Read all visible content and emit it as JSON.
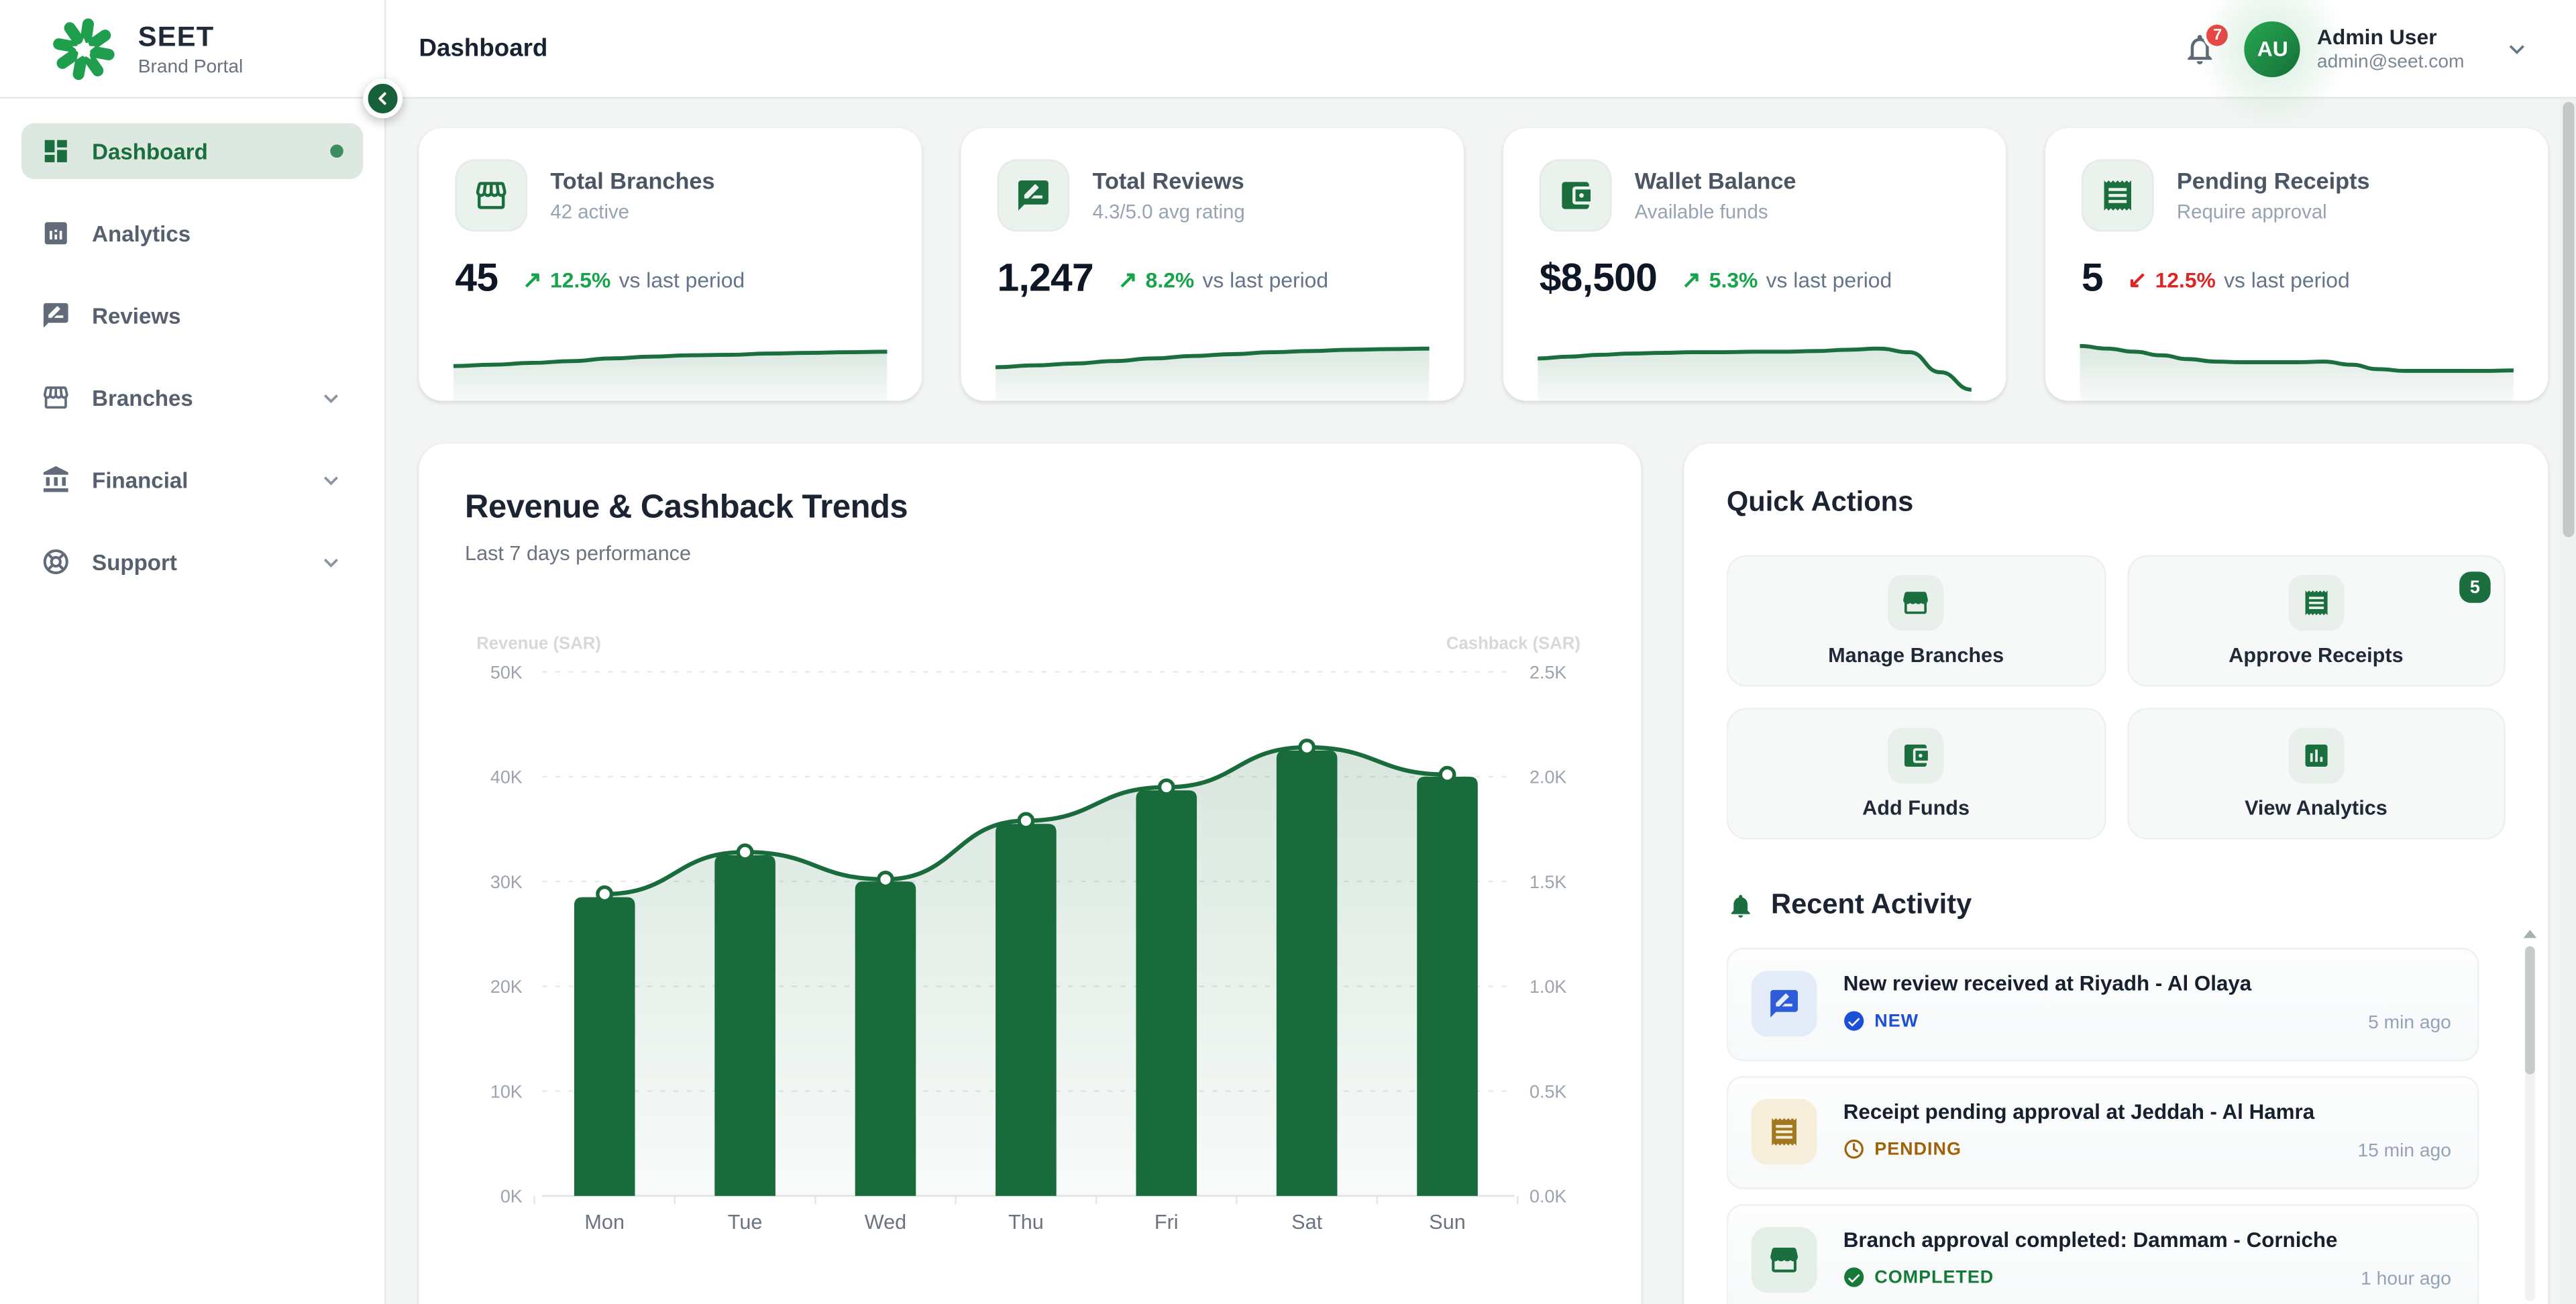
{
  "brand": {
    "name": "SEET",
    "tagline": "Brand Portal"
  },
  "header": {
    "title": "Dashboard",
    "notification_count": "7",
    "user": {
      "initials": "AU",
      "name": "Admin User",
      "email": "admin@seet.com"
    }
  },
  "sidebar": {
    "items": [
      {
        "label": "Dashboard",
        "active": true
      },
      {
        "label": "Analytics"
      },
      {
        "label": "Reviews"
      },
      {
        "label": "Branches",
        "expandable": true
      },
      {
        "label": "Financial",
        "expandable": true
      },
      {
        "label": "Support",
        "expandable": true
      }
    ]
  },
  "stats": [
    {
      "title": "Total Branches",
      "subtitle": "42 active",
      "value": "45",
      "trend_arrow": "↗",
      "trend_value": "12.5%",
      "trend_label": "vs last period",
      "direction": "up",
      "spark": [
        40,
        42,
        45,
        48,
        52,
        55,
        57,
        58,
        60,
        61,
        62,
        63
      ]
    },
    {
      "title": "Total Reviews",
      "subtitle": "4.3/5.0 avg rating",
      "value": "1,247",
      "trend_arrow": "↗",
      "trend_value": "8.2%",
      "trend_label": "vs last period",
      "direction": "up",
      "spark": [
        38,
        41,
        44,
        48,
        52,
        56,
        59,
        62,
        64,
        66,
        67,
        68
      ]
    },
    {
      "title": "Wallet Balance",
      "subtitle": "Available funds",
      "value": "$8,500",
      "trend_arrow": "↗",
      "trend_value": "5.3%",
      "trend_label": "vs last period",
      "direction": "up",
      "spark": [
        52,
        55,
        58,
        60,
        61,
        62,
        62,
        63,
        63,
        64,
        66,
        68,
        62,
        30,
        2
      ]
    },
    {
      "title": "Pending Receipts",
      "subtitle": "Require approval",
      "value": "5",
      "trend_arrow": "↙",
      "trend_value": "12.5%",
      "trend_label": "vs last period",
      "direction": "down",
      "spark": [
        72,
        68,
        63,
        57,
        51,
        47,
        46,
        46,
        46,
        47,
        42,
        35,
        32,
        32,
        32,
        32,
        33
      ]
    }
  ],
  "chart_data": {
    "type": "bar",
    "title": "Revenue & Cashback Trends",
    "subtitle": "Last 7 days performance",
    "categories": [
      "Mon",
      "Tue",
      "Wed",
      "Thu",
      "Fri",
      "Sat",
      "Sun"
    ],
    "series": [
      {
        "name": "Revenue (SAR)",
        "type": "bar",
        "axis": "left",
        "values": [
          28500,
          32500,
          30000,
          35500,
          38700,
          42500,
          40000
        ]
      },
      {
        "name": "Cashback (SAR)",
        "type": "line",
        "axis": "right",
        "values": [
          1440,
          1640,
          1510,
          1790,
          1950,
          2140,
          2010
        ]
      }
    ],
    "left_axis": {
      "label": "Revenue (SAR)",
      "range": [
        0,
        50000
      ],
      "ticks": [
        "0K",
        "10K",
        "20K",
        "30K",
        "40K",
        "50K"
      ]
    },
    "right_axis": {
      "label": "Cashback (SAR)",
      "range": [
        0,
        2500
      ],
      "ticks": [
        "0.0K",
        "0.5K",
        "1.0K",
        "1.5K",
        "2.0K",
        "2.5K"
      ]
    },
    "grid": "dashed-horizontal",
    "bar_color": "#1a6b3c"
  },
  "quick_actions": {
    "title": "Quick Actions",
    "actions": [
      {
        "label": "Manage Branches",
        "icon": "storefront-icon"
      },
      {
        "label": "Approve Receipts",
        "icon": "receipt-icon",
        "badge": "5"
      },
      {
        "label": "Add Funds",
        "icon": "wallet-icon"
      },
      {
        "label": "View Analytics",
        "icon": "bar-chart-icon"
      }
    ]
  },
  "recent_activity": {
    "title": "Recent Activity",
    "items": [
      {
        "title": "New review received at Riyadh - Al Olaya",
        "status": "NEW",
        "time": "5 min ago",
        "icon": "rate-review-icon",
        "color": "blue"
      },
      {
        "title": "Receipt pending approval at Jeddah - Al Hamra",
        "status": "PENDING",
        "time": "15 min ago",
        "icon": "receipt-icon",
        "color": "amber"
      },
      {
        "title": "Branch approval completed: Dammam - Corniche",
        "status": "COMPLETED",
        "time": "1 hour ago",
        "icon": "storefront-icon",
        "color": "green"
      }
    ]
  },
  "colors": {
    "brand_green": "#1b6e3e",
    "bar_green": "#1a6b3c",
    "trend_up": "#16a34a",
    "trend_down": "#dc2626",
    "badge_red": "#ef4444",
    "status_new": "#1d4ed8",
    "status_pending": "#a16207",
    "status_completed": "#157a38"
  }
}
